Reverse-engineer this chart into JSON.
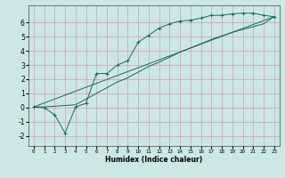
{
  "xlabel": "Humidex (Indice chaleur)",
  "xlim": [
    -0.5,
    23.5
  ],
  "ylim": [
    -2.7,
    7.2
  ],
  "xticks": [
    0,
    1,
    2,
    3,
    4,
    5,
    6,
    7,
    8,
    9,
    10,
    11,
    12,
    13,
    14,
    15,
    16,
    17,
    18,
    19,
    20,
    21,
    22,
    23
  ],
  "yticks": [
    -2,
    -1,
    0,
    1,
    2,
    3,
    4,
    5,
    6
  ],
  "bg_color": "#cce8e4",
  "grid_color": "#d4a0a0",
  "line_color": "#1a6b5a",
  "line1_x": [
    0,
    1,
    2,
    3,
    4,
    5,
    6,
    7,
    8,
    9,
    10,
    11,
    12,
    13,
    14,
    15,
    16,
    17,
    18,
    19,
    20,
    21,
    22,
    23
  ],
  "line1_y": [
    0.05,
    0.0,
    -0.5,
    -1.8,
    0.05,
    0.3,
    2.4,
    2.4,
    3.0,
    3.3,
    4.6,
    5.1,
    5.6,
    5.9,
    6.1,
    6.15,
    6.3,
    6.5,
    6.5,
    6.6,
    6.65,
    6.65,
    6.5,
    6.4
  ],
  "line2_x": [
    0,
    1,
    2,
    3,
    4,
    5,
    6,
    7,
    8,
    9,
    10,
    11,
    12,
    13,
    14,
    15,
    16,
    17,
    18,
    19,
    20,
    21,
    22,
    23
  ],
  "line2_y": [
    0.05,
    0.05,
    0.1,
    0.15,
    0.2,
    0.6,
    1.0,
    1.4,
    1.8,
    2.1,
    2.5,
    2.9,
    3.2,
    3.55,
    3.9,
    4.2,
    4.5,
    4.8,
    5.05,
    5.3,
    5.5,
    5.7,
    5.9,
    6.4
  ],
  "line3_x": [
    0,
    23
  ],
  "line3_y": [
    0.05,
    6.4
  ]
}
